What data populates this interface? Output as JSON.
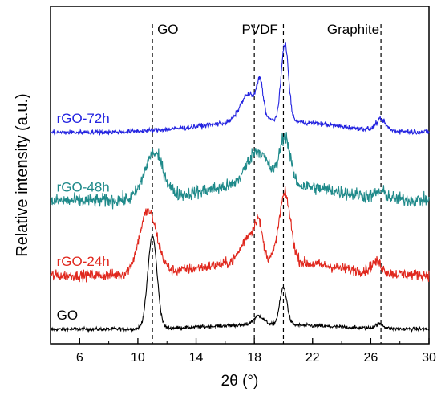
{
  "chart_data": {
    "type": "line",
    "xlabel": "2θ (°)",
    "ylabel": "Relative intensity (a.u.)",
    "xlim": [
      4,
      30
    ],
    "x_ticks": [
      6,
      10,
      14,
      18,
      22,
      26,
      30
    ],
    "y_ticks_shown": false,
    "legend": "none",
    "reference_lines": [
      {
        "x": 11.0,
        "label": "GO"
      },
      {
        "x": 18.0,
        "label": ""
      },
      {
        "x": 20.0,
        "label": "PVDF"
      },
      {
        "x": 26.7,
        "label": "Graphite"
      }
    ],
    "series": [
      {
        "name": "GO",
        "color": "#000000",
        "baseline": 0.0,
        "peaks": [
          {
            "x": 11.0,
            "height": 0.62,
            "width": 0.45
          },
          {
            "x": 18.3,
            "height": 0.06,
            "width": 0.5
          },
          {
            "x": 20.0,
            "height": 0.25,
            "width": 0.35
          },
          {
            "x": 26.6,
            "height": 0.03,
            "width": 0.4
          }
        ],
        "background": 0.03,
        "noise": 0.012
      },
      {
        "name": "rGO-24h",
        "color": "#e0281e",
        "baseline": 0.36,
        "peaks": [
          {
            "x": 10.7,
            "height": 0.42,
            "width": 0.85
          },
          {
            "x": 17.7,
            "height": 0.18,
            "width": 0.8
          },
          {
            "x": 18.3,
            "height": 0.18,
            "width": 0.35
          },
          {
            "x": 20.1,
            "height": 0.45,
            "width": 0.55
          },
          {
            "x": 26.4,
            "height": 0.07,
            "width": 0.5
          }
        ],
        "background": 0.1,
        "noise": 0.035
      },
      {
        "name": "rGO-48h",
        "color": "#1f8a8a",
        "baseline": 0.86,
        "peaks": [
          {
            "x": 11.1,
            "height": 0.3,
            "width": 0.9
          },
          {
            "x": 18.2,
            "height": 0.22,
            "width": 1.0
          },
          {
            "x": 20.1,
            "height": 0.32,
            "width": 0.5
          },
          {
            "x": 26.7,
            "height": 0.04,
            "width": 0.5
          }
        ],
        "background": 0.12,
        "noise": 0.045
      },
      {
        "name": "rGO-72h",
        "color": "#2323e0",
        "baseline": 1.32,
        "peaks": [
          {
            "x": 17.6,
            "height": 0.18,
            "width": 0.8
          },
          {
            "x": 18.4,
            "height": 0.22,
            "width": 0.3
          },
          {
            "x": 20.1,
            "height": 0.52,
            "width": 0.35
          },
          {
            "x": 26.7,
            "height": 0.07,
            "width": 0.45
          }
        ],
        "background": 0.08,
        "noise": 0.016
      }
    ]
  }
}
